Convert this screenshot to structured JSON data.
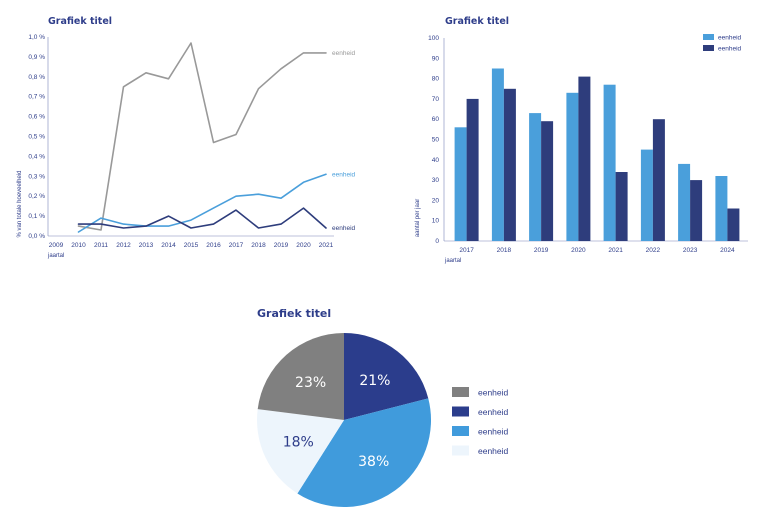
{
  "colors": {
    "gray": "#999999",
    "light_blue": "#4a9fdb",
    "navy": "#2e3d7c",
    "dark_gray": "#808080",
    "pie_navy": "#2b3d8c",
    "pie_blue": "#409bdc",
    "pie_pale": "#edf5fc",
    "text": "#2e3d8a"
  },
  "chart_data": [
    {
      "type": "line",
      "title": "Grafiek titel",
      "xlabel": "jaartal",
      "ylabel": "% van totale hoeveelheid",
      "x": [
        "2009",
        "2010",
        "2011",
        "2012",
        "2013",
        "2014",
        "2015",
        "2016",
        "2017",
        "2018",
        "2019",
        "2020",
        "2021"
      ],
      "ylim": [
        0,
        1.0
      ],
      "y_ticks": [
        "0,0 %",
        "0,1 %",
        "0,2 %",
        "0,3 %",
        "0,4 %",
        "0,5 %",
        "0,6 %",
        "0,7 %",
        "0,8 %",
        "0,9 %",
        "1,0 %"
      ],
      "grid": false,
      "series": [
        {
          "name": "eenheid",
          "color": "#999999",
          "values": [
            null,
            0.05,
            0.03,
            0.75,
            0.82,
            0.79,
            0.97,
            0.47,
            0.51,
            0.74,
            0.84,
            0.92,
            0.92
          ]
        },
        {
          "name": "eenheid",
          "color": "#4a9fdb",
          "values": [
            null,
            0.02,
            0.09,
            0.06,
            0.05,
            0.05,
            0.08,
            0.14,
            0.2,
            0.21,
            0.19,
            0.27,
            0.31
          ]
        },
        {
          "name": "eenheid",
          "color": "#2e3d7c",
          "values": [
            null,
            0.06,
            0.06,
            0.04,
            0.05,
            0.1,
            0.04,
            0.06,
            0.13,
            0.04,
            0.06,
            0.14,
            0.04
          ]
        }
      ]
    },
    {
      "type": "bar",
      "title": "Grafiek titel",
      "xlabel": "jaartal",
      "ylabel": "aantal per jaar",
      "categories": [
        "2017",
        "2018",
        "2019",
        "2020",
        "2021",
        "2022",
        "2023",
        "2024"
      ],
      "ylim": [
        0,
        100
      ],
      "y_ticks": [
        0,
        10,
        20,
        30,
        40,
        50,
        60,
        70,
        80,
        90,
        100
      ],
      "grid": false,
      "legend": "top-right",
      "series": [
        {
          "name": "eenheid",
          "color": "#4a9fdb",
          "values": [
            56,
            85,
            63,
            73,
            77,
            45,
            38,
            32
          ]
        },
        {
          "name": "eenheid",
          "color": "#2e3d7c",
          "values": [
            70,
            75,
            59,
            81,
            34,
            60,
            30,
            16
          ]
        }
      ]
    },
    {
      "type": "pie",
      "title": "Grafiek titel",
      "legend": "right",
      "slices": [
        {
          "name": "eenheid",
          "value": 23,
          "label": "23%",
          "color": "#808080"
        },
        {
          "name": "eenheid",
          "value": 21,
          "label": "21%",
          "color": "#2b3d8c"
        },
        {
          "name": "eenheid",
          "value": 38,
          "label": "38%",
          "color": "#409bdc"
        },
        {
          "name": "eenheid",
          "value": 18,
          "label": "18%",
          "color": "#edf5fc"
        }
      ],
      "draw_order": [
        1,
        2,
        3,
        0
      ]
    }
  ]
}
